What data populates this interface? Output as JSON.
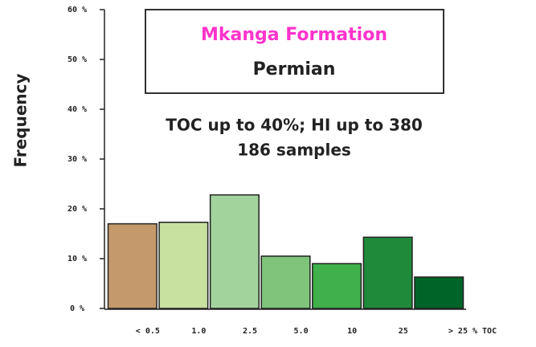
{
  "chart_data": {
    "type": "bar",
    "title": "Mkanga Formation",
    "subtitle": "Permian",
    "annotations": [
      "TOC up to 40%; HI up to 380",
      "186 samples"
    ],
    "y_label": "Frequency",
    "categories": [
      "< 0.5",
      "1.0",
      "2.5",
      "5.0",
      "10",
      "25",
      "> 25 % TOC"
    ],
    "values": [
      17,
      17.3,
      22.8,
      10.5,
      9,
      14.3,
      6.3
    ],
    "colors": [
      "#c49a6c",
      "#c8e0a0",
      "#a3d39c",
      "#7fc47a",
      "#3fb04a",
      "#1f8a3a",
      "#006428"
    ],
    "ylim": [
      0,
      60
    ],
    "yticks": [
      {
        "value": 0,
        "label": "0 %"
      },
      {
        "value": 10,
        "label": "10 %"
      },
      {
        "value": 20,
        "label": "20 %"
      },
      {
        "value": 30,
        "label": "30 %"
      },
      {
        "value": 40,
        "label": "40 %"
      },
      {
        "value": 50,
        "label": "50 %"
      },
      {
        "value": 60,
        "label": "60 %"
      }
    ]
  }
}
